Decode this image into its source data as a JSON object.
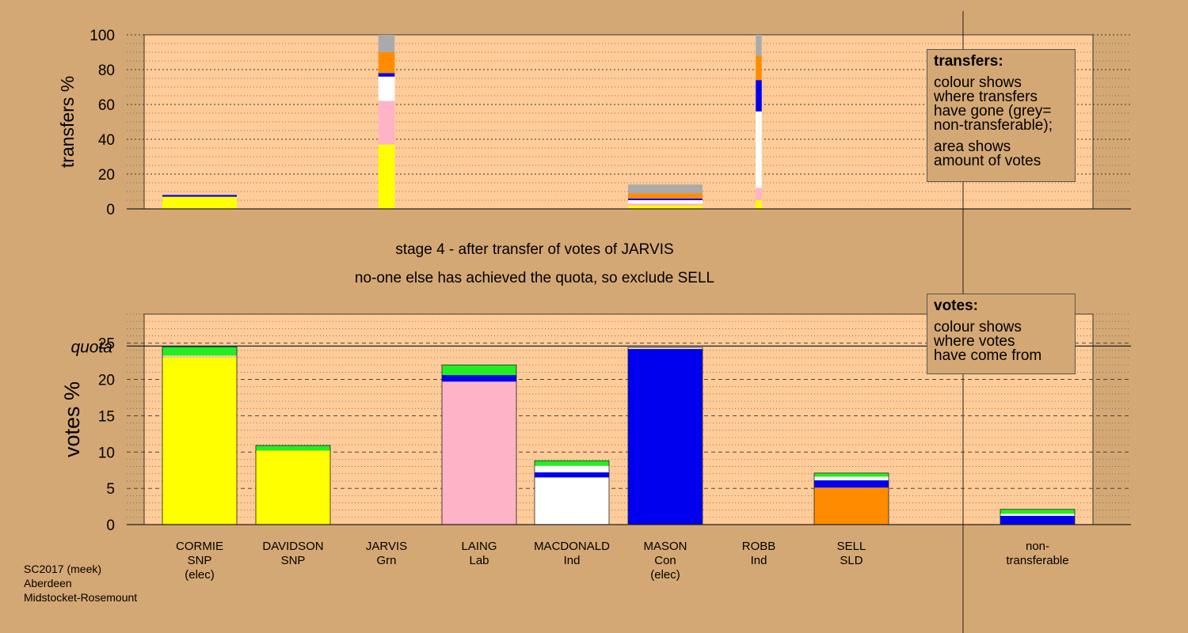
{
  "colors": {
    "background": "#d4a874",
    "plot_bg": "#ffcc99",
    "SNP": "#ffff00",
    "Lab": "#ffb3c6",
    "Ind": "#ffffff",
    "Con": "#0000ee",
    "SLD": "#ff8c00",
    "Grn": "#22ee22",
    "nontransferable": "#aaaaaa"
  },
  "stage_title": "stage 4 - after transfer of votes of JARVIS",
  "stage_subtitle": "no-one else has achieved the quota, so exclude SELL",
  "footer": {
    "line1": "SC2017 (meek)",
    "line2": "Aberdeen",
    "line3": "Midstocket-Rosemount"
  },
  "legend_transfers": {
    "title": "transfers:",
    "text1": "colour shows\nwhere transfers\nhave gone (grey=\nnon-transferable);",
    "text2": "area shows\namount of votes"
  },
  "legend_votes": {
    "title": "votes:",
    "text1": "colour shows\nwhere votes\nhave come from"
  },
  "candidates": [
    {
      "name": "CORMIE",
      "party": "SNP",
      "note": "(elec)"
    },
    {
      "name": "DAVIDSON",
      "party": "SNP",
      "note": ""
    },
    {
      "name": "JARVIS",
      "party": "Grn",
      "note": ""
    },
    {
      "name": "LAING",
      "party": "Lab",
      "note": ""
    },
    {
      "name": "MACDONALD",
      "party": "Ind",
      "note": ""
    },
    {
      "name": "MASON",
      "party": "Con",
      "note": "(elec)"
    },
    {
      "name": "ROBB",
      "party": "Ind",
      "note": ""
    },
    {
      "name": "SELL",
      "party": "SLD",
      "note": ""
    },
    {
      "name": "non-",
      "party": "transferable",
      "note": ""
    }
  ],
  "chart_data": [
    {
      "type": "bar",
      "ylabel": "transfers %",
      "ylim": [
        0,
        100
      ],
      "yticks": [
        0,
        20,
        40,
        60,
        80,
        100
      ],
      "grid": "dotted",
      "bars": [
        {
          "candidate": "CORMIE",
          "width_frac": 1.0,
          "segments": [
            {
              "color": "SNP",
              "from": 0,
              "to": 7
            },
            {
              "color": "Con",
              "from": 7,
              "to": 8
            }
          ]
        },
        {
          "candidate": "JARVIS",
          "width_frac": 0.22,
          "segments": [
            {
              "color": "SNP",
              "from": 0,
              "to": 37
            },
            {
              "color": "Lab",
              "from": 37,
              "to": 62
            },
            {
              "color": "Ind",
              "from": 62,
              "to": 76
            },
            {
              "color": "Con",
              "from": 76,
              "to": 78
            },
            {
              "color": "SLD",
              "from": 78,
              "to": 90
            },
            {
              "color": "nontransferable",
              "from": 90,
              "to": 100
            }
          ]
        },
        {
          "candidate": "MASON",
          "width_frac": 1.0,
          "segments": [
            {
              "color": "SNP",
              "from": 0,
              "to": 2
            },
            {
              "color": "Lab",
              "from": 2,
              "to": 3
            },
            {
              "color": "Ind",
              "from": 3,
              "to": 5
            },
            {
              "color": "Con",
              "from": 5,
              "to": 6
            },
            {
              "color": "SLD",
              "from": 6,
              "to": 9
            },
            {
              "color": "nontransferable",
              "from": 9,
              "to": 14
            }
          ]
        },
        {
          "candidate": "ROBB",
          "width_frac": 0.08,
          "segments": [
            {
              "color": "SNP",
              "from": 0,
              "to": 5
            },
            {
              "color": "Lab",
              "from": 5,
              "to": 12
            },
            {
              "color": "Ind",
              "from": 12,
              "to": 56
            },
            {
              "color": "Con",
              "from": 56,
              "to": 74
            },
            {
              "color": "SLD",
              "from": 74,
              "to": 88
            },
            {
              "color": "nontransferable",
              "from": 88,
              "to": 100
            }
          ]
        }
      ]
    },
    {
      "type": "bar",
      "ylabel": "votes %",
      "ylim": [
        0,
        29
      ],
      "yticks": [
        0,
        5,
        10,
        15,
        20,
        25
      ],
      "quota": 24.6,
      "quota_label": "quota",
      "grid": "dashed",
      "bars": [
        {
          "candidate": "CORMIE",
          "segments": [
            {
              "color": "SNP",
              "from": 0,
              "to": 23.0
            },
            {
              "color": "Grn",
              "from": 23.3,
              "to": 24.5
            }
          ]
        },
        {
          "candidate": "DAVIDSON",
          "segments": [
            {
              "color": "SNP",
              "from": 0,
              "to": 8.4
            },
            {
              "color": "SNP",
              "from": 8.4,
              "to": 10.2
            },
            {
              "color": "Grn",
              "from": 10.2,
              "to": 10.9
            }
          ]
        },
        {
          "candidate": "JARVIS",
          "segments": []
        },
        {
          "candidate": "LAING",
          "segments": [
            {
              "color": "Lab",
              "from": 0,
              "to": 19.7
            },
            {
              "color": "Con",
              "from": 19.7,
              "to": 20.6
            },
            {
              "color": "Grn",
              "from": 20.6,
              "to": 22.0
            }
          ]
        },
        {
          "candidate": "MACDONALD",
          "segments": [
            {
              "color": "Ind",
              "from": 0,
              "to": 6.5
            },
            {
              "color": "Con",
              "from": 6.5,
              "to": 7.2
            },
            {
              "color": "Ind",
              "from": 7.2,
              "to": 8.1
            },
            {
              "color": "Grn",
              "from": 8.1,
              "to": 8.8
            }
          ]
        },
        {
          "candidate": "MASON",
          "segments": [
            {
              "color": "Con",
              "from": 0,
              "to": 24.2
            },
            {
              "color": "Ind",
              "from": 24.2,
              "to": 24.4
            }
          ]
        },
        {
          "candidate": "ROBB",
          "segments": []
        },
        {
          "candidate": "SELL",
          "segments": [
            {
              "color": "SLD",
              "from": 0,
              "to": 5.1
            },
            {
              "color": "Con",
              "from": 5.1,
              "to": 6.1
            },
            {
              "color": "Ind",
              "from": 6.1,
              "to": 6.6
            },
            {
              "color": "Grn",
              "from": 6.6,
              "to": 7.1
            }
          ]
        },
        {
          "candidate": "non-transferable",
          "segments": [
            {
              "color": "Con",
              "from": 0,
              "to": 1.2
            },
            {
              "color": "Ind",
              "from": 1.2,
              "to": 1.5
            },
            {
              "color": "Grn",
              "from": 1.5,
              "to": 2.1
            }
          ]
        }
      ]
    }
  ]
}
